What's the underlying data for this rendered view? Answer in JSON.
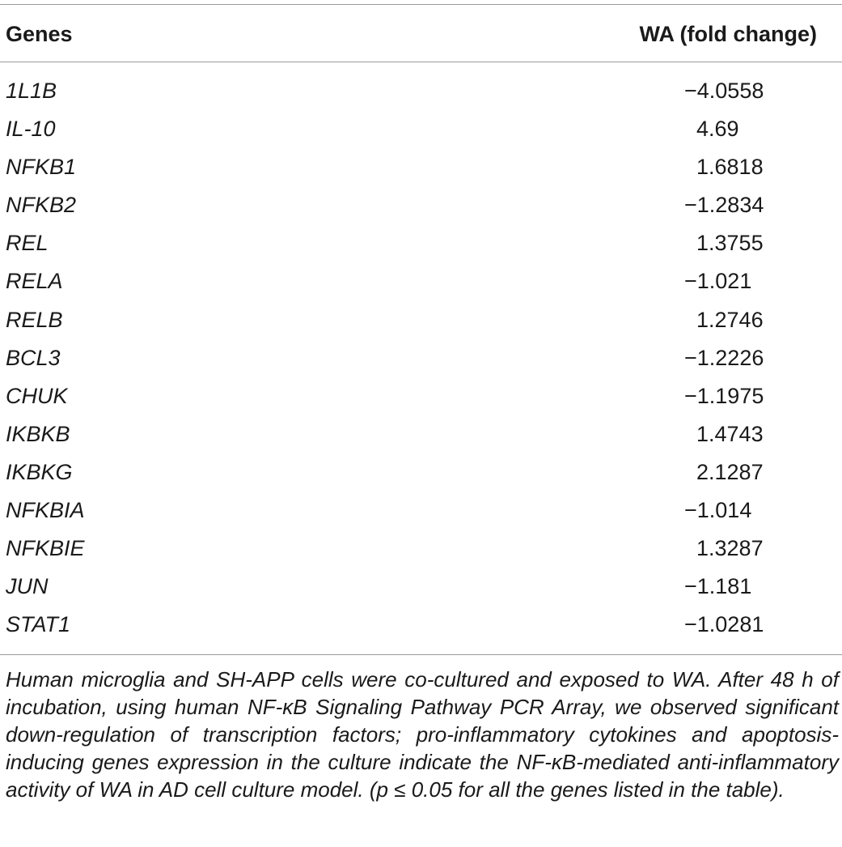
{
  "table": {
    "headers": {
      "genes": "Genes",
      "wa": "WA (fold change)"
    },
    "rows": [
      {
        "gene": "1L1B",
        "value": "−4.0558"
      },
      {
        "gene": "IL-10",
        "value": "  4.69"
      },
      {
        "gene": "NFKB1",
        "value": "  1.6818"
      },
      {
        "gene": "NFKB2",
        "value": "−1.2834"
      },
      {
        "gene": "REL",
        "value": "  1.3755"
      },
      {
        "gene": "RELA",
        "value": "−1.021"
      },
      {
        "gene": "RELB",
        "value": "  1.2746"
      },
      {
        "gene": "BCL3",
        "value": "−1.2226"
      },
      {
        "gene": "CHUK",
        "value": "−1.1975"
      },
      {
        "gene": "IKBKB",
        "value": "  1.4743"
      },
      {
        "gene": "IKBKG",
        "value": "  2.1287"
      },
      {
        "gene": "NFKBIA",
        "value": "−1.014"
      },
      {
        "gene": "NFKBIE",
        "value": "  1.3287"
      },
      {
        "gene": "JUN",
        "value": "−1.181"
      },
      {
        "gene": "STAT1",
        "value": "−1.0281"
      }
    ],
    "caption": "Human microglia and SH-APP cells were co-cultured and exposed to WA. After 48 h of incubation, using human NF-κB Signaling Pathway PCR Array, we observed significant down-regulation of transcription factors; pro-inflammatory cytokines and apoptosis-inducing genes expression in the culture indicate the NF-κB-mediated anti-inflammatory activity of WA in AD cell culture model. (p ≤ 0.05 for all the genes listed in the table)."
  }
}
